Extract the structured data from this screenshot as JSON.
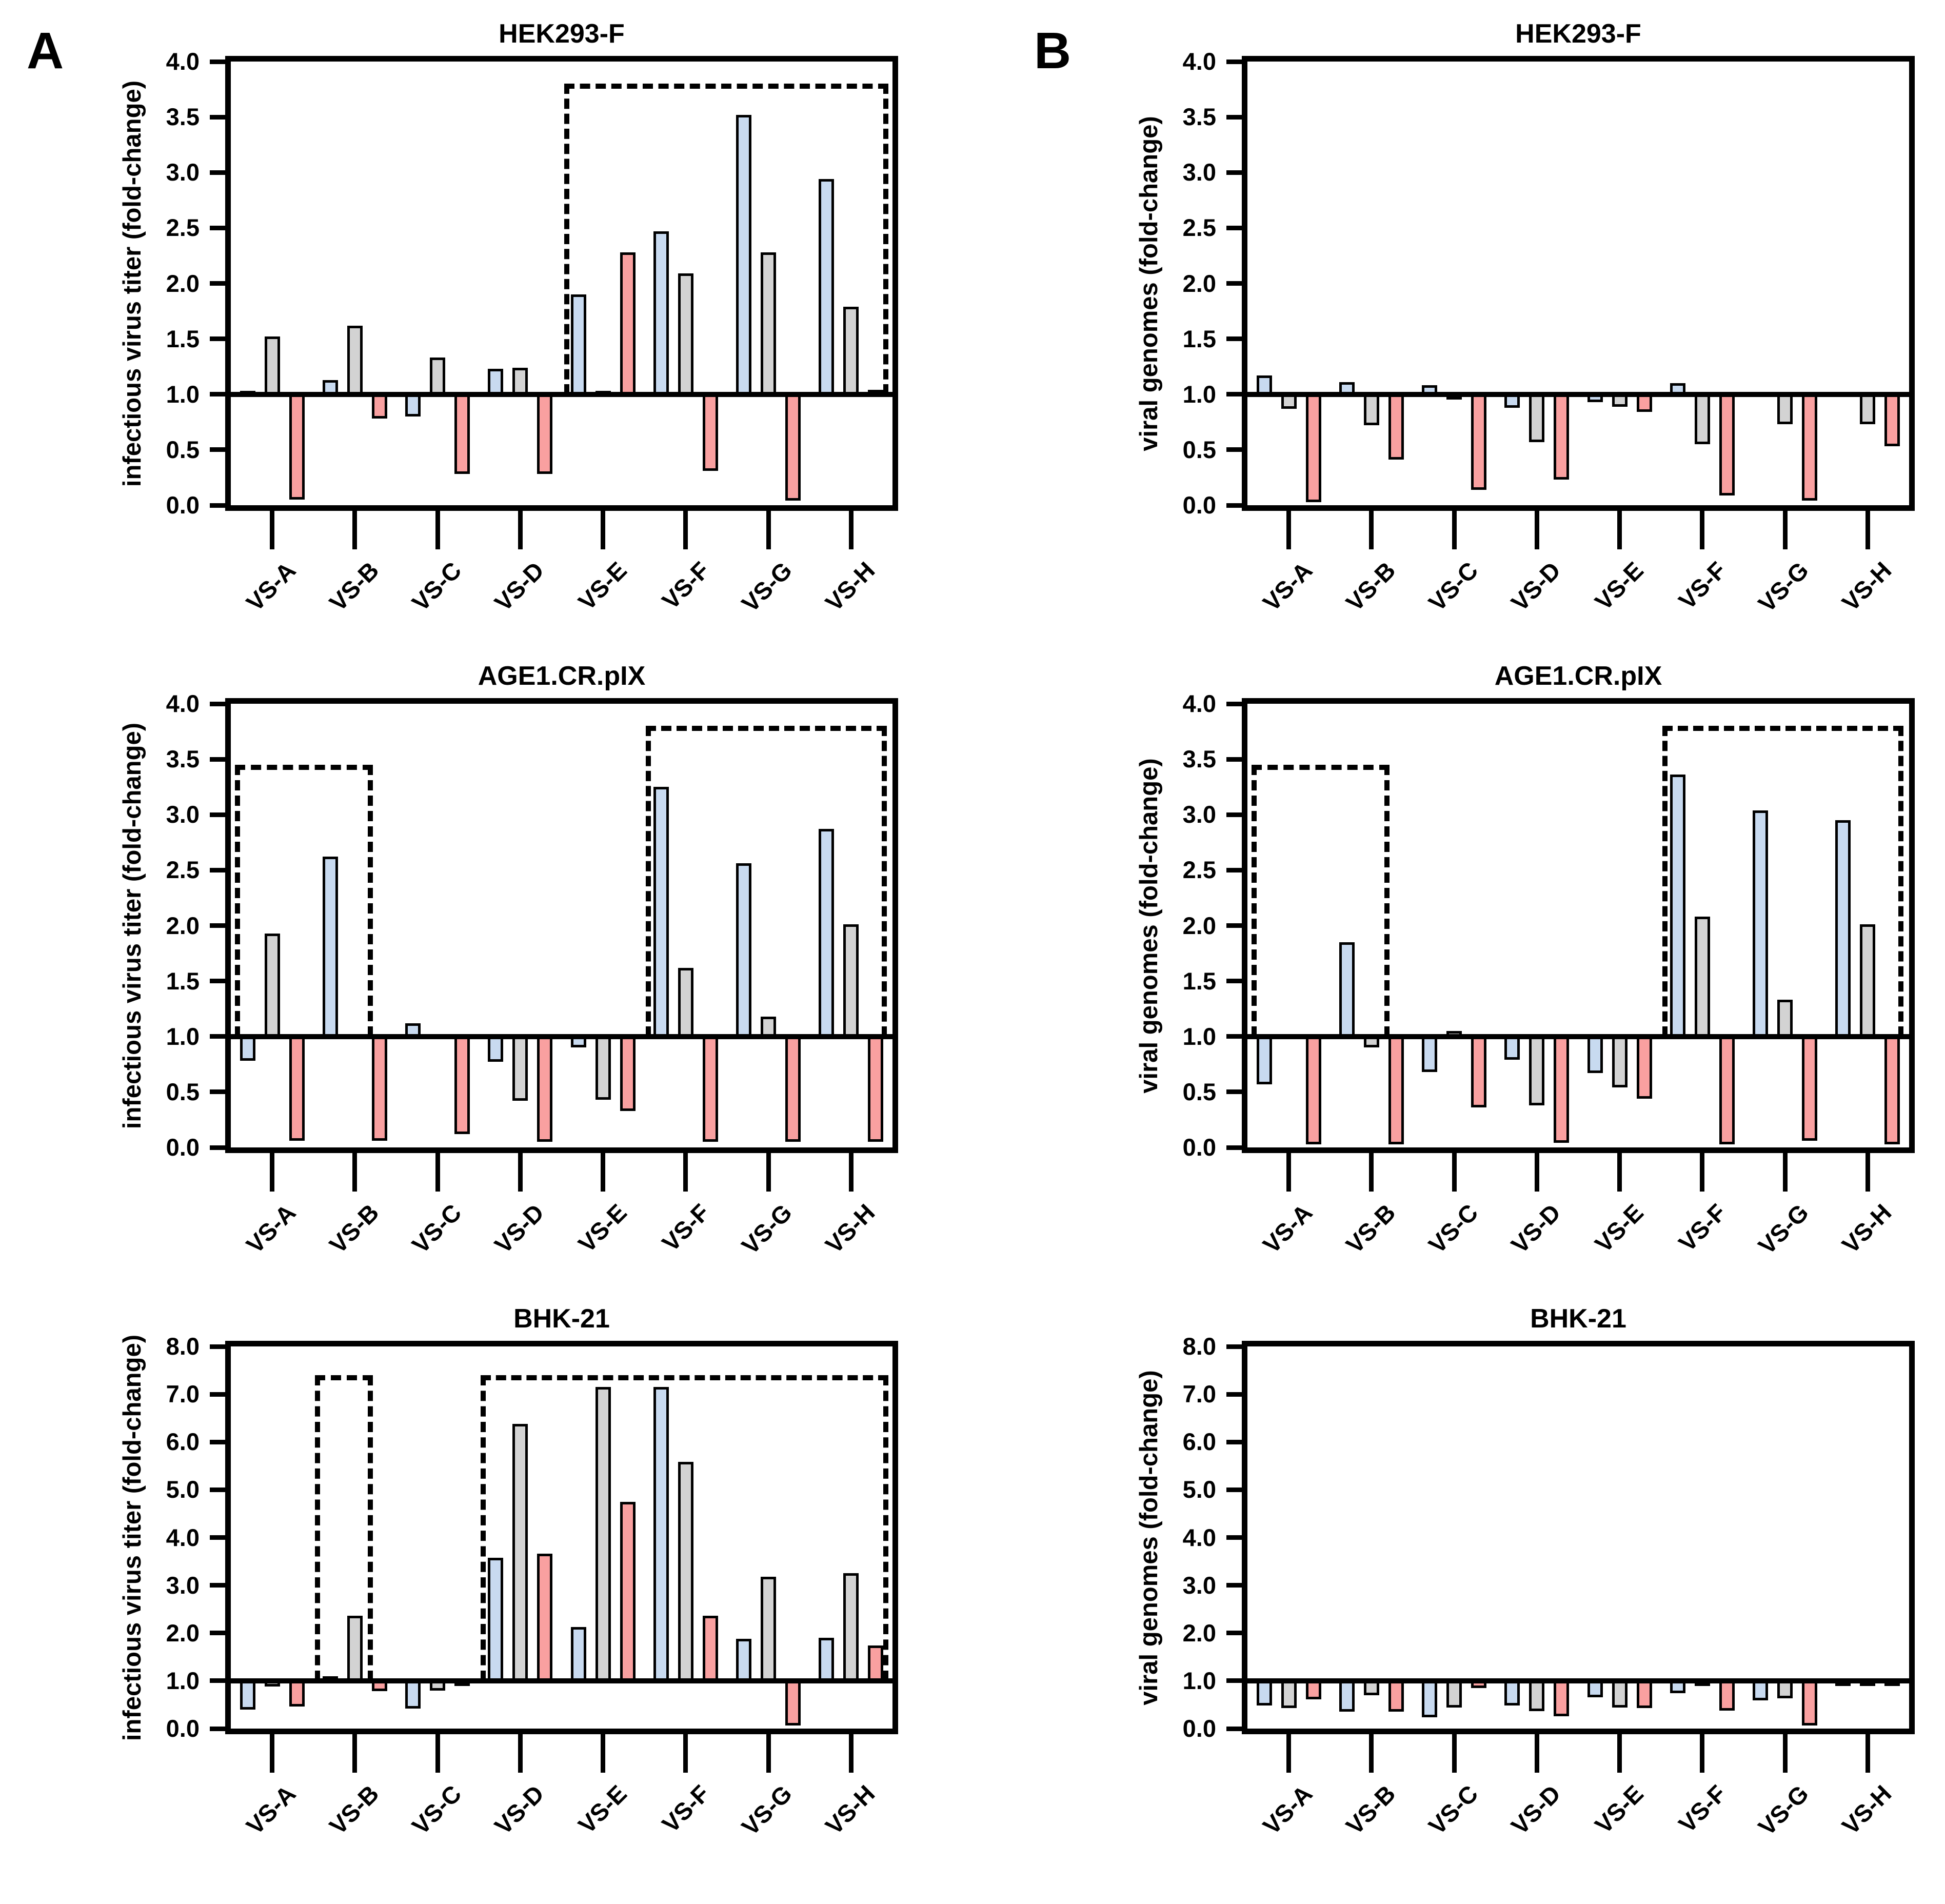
{
  "panels": [
    {
      "label": "A"
    },
    {
      "label": "B"
    }
  ],
  "colors": {
    "blue": "#c8daf0",
    "gray": "#d3d3d3",
    "pink": "#f9a0a0",
    "outline": "#000000"
  },
  "chart_data": [
    {
      "id": "A1",
      "type": "bar",
      "panel": "A",
      "row": 0,
      "col": 0,
      "title": "HEK293-F",
      "ylabel": "infectious virus titer (fold-change)",
      "ylim": [
        0,
        4
      ],
      "ytick_step": 0.5,
      "baseline": 1.0,
      "grid": false,
      "legend": "none",
      "categories": [
        "VS-A",
        "VS-B",
        "VS-C",
        "VS-D",
        "VS-E",
        "VS-F",
        "VS-G",
        "VS-H"
      ],
      "series": [
        {
          "name": "blue",
          "values": [
            1.03,
            1.13,
            0.8,
            1.23,
            1.9,
            2.47,
            3.52,
            2.94
          ]
        },
        {
          "name": "gray",
          "values": [
            1.52,
            1.62,
            1.33,
            1.24,
            1.03,
            2.09,
            2.28,
            1.79
          ]
        },
        {
          "name": "pink",
          "values": [
            0.05,
            0.78,
            0.28,
            0.28,
            2.28,
            0.31,
            0.04,
            1.04
          ]
        }
      ],
      "dashed_boxes": [
        {
          "x1": 4.03,
          "x2": 7.95,
          "top": 3.8
        }
      ]
    },
    {
      "id": "B1",
      "type": "bar",
      "panel": "B",
      "row": 0,
      "col": 1,
      "title": "HEK293-F",
      "ylabel": "viral genomes (fold-change)",
      "ylim": [
        0,
        4
      ],
      "ytick_step": 0.5,
      "baseline": 1.0,
      "grid": false,
      "legend": "none",
      "categories": [
        "VS-A",
        "VS-B",
        "VS-C",
        "VS-D",
        "VS-E",
        "VS-F",
        "VS-G",
        "VS-H"
      ],
      "series": [
        {
          "name": "blue",
          "values": [
            1.17,
            1.11,
            1.08,
            0.88,
            0.93,
            1.1,
            1.0,
            1.0
          ]
        },
        {
          "name": "gray",
          "values": [
            0.87,
            0.72,
            0.96,
            0.57,
            0.89,
            0.55,
            0.73,
            0.73
          ]
        },
        {
          "name": "pink",
          "values": [
            0.03,
            0.41,
            0.14,
            0.23,
            0.84,
            0.09,
            0.04,
            0.53
          ]
        }
      ],
      "dashed_boxes": []
    },
    {
      "id": "A2",
      "type": "bar",
      "panel": "A",
      "row": 1,
      "col": 0,
      "title": "AGE1.CR.pIX",
      "ylabel": "infectious virus titer (fold-change)",
      "ylim": [
        0,
        4
      ],
      "ytick_step": 0.5,
      "baseline": 1.0,
      "grid": false,
      "legend": "none",
      "categories": [
        "VS-A",
        "VS-B",
        "VS-C",
        "VS-D",
        "VS-E",
        "VS-F",
        "VS-G",
        "VS-H"
      ],
      "series": [
        {
          "name": "blue",
          "values": [
            0.78,
            2.62,
            1.12,
            0.77,
            0.9,
            3.25,
            2.56,
            2.87
          ]
        },
        {
          "name": "gray",
          "values": [
            1.93,
            1.0,
            1.0,
            0.42,
            0.43,
            1.62,
            1.18,
            2.01
          ]
        },
        {
          "name": "pink",
          "values": [
            0.06,
            0.06,
            0.12,
            0.05,
            0.33,
            0.05,
            0.05,
            0.05
          ]
        }
      ],
      "dashed_boxes": [
        {
          "x1": 0.05,
          "x2": 1.72,
          "top": 3.45
        },
        {
          "x1": 5.02,
          "x2": 7.93,
          "top": 3.8
        }
      ]
    },
    {
      "id": "B2",
      "type": "bar",
      "panel": "B",
      "row": 1,
      "col": 1,
      "title": "AGE1.CR.pIX",
      "ylabel": "viral genomes (fold-change)",
      "ylim": [
        0,
        4
      ],
      "ytick_step": 0.5,
      "baseline": 1.0,
      "grid": false,
      "legend": "none",
      "categories": [
        "VS-A",
        "VS-B",
        "VS-C",
        "VS-D",
        "VS-E",
        "VS-F",
        "VS-G",
        "VS-H"
      ],
      "series": [
        {
          "name": "blue",
          "values": [
            0.57,
            1.85,
            0.68,
            0.79,
            0.67,
            3.36,
            3.04,
            2.95
          ]
        },
        {
          "name": "gray",
          "values": [
            1.0,
            0.9,
            1.05,
            0.38,
            0.54,
            2.08,
            1.33,
            2.01
          ]
        },
        {
          "name": "pink",
          "values": [
            0.03,
            0.03,
            0.36,
            0.04,
            0.44,
            0.03,
            0.06,
            0.03
          ]
        }
      ],
      "dashed_boxes": [
        {
          "x1": 0.05,
          "x2": 1.72,
          "top": 3.45
        },
        {
          "x1": 5.02,
          "x2": 7.93,
          "top": 3.8
        }
      ]
    },
    {
      "id": "A3",
      "type": "bar",
      "panel": "A",
      "row": 2,
      "col": 0,
      "title": "BHK-21",
      "ylabel": "infectious virus titer (fold-change)",
      "ylim": [
        0,
        8
      ],
      "ytick_step": 1.0,
      "baseline": 1.0,
      "grid": false,
      "legend": "none",
      "categories": [
        "VS-A",
        "VS-B",
        "VS-C",
        "VS-D",
        "VS-E",
        "VS-F",
        "VS-G",
        "VS-H"
      ],
      "series": [
        {
          "name": "blue",
          "values": [
            0.4,
            1.1,
            0.42,
            3.58,
            2.13,
            7.15,
            1.88,
            1.9
          ]
        },
        {
          "name": "gray",
          "values": [
            0.88,
            2.36,
            0.8,
            6.38,
            7.15,
            5.58,
            3.18,
            3.25
          ]
        },
        {
          "name": "pink",
          "values": [
            0.46,
            0.78,
            0.98,
            3.66,
            4.75,
            2.36,
            0.06,
            1.74
          ]
        }
      ],
      "dashed_boxes": [
        {
          "x1": 1.02,
          "x2": 1.72,
          "top": 7.4
        },
        {
          "x1": 3.02,
          "x2": 7.95,
          "top": 7.4
        }
      ]
    },
    {
      "id": "B3",
      "type": "bar",
      "panel": "B",
      "row": 2,
      "col": 1,
      "title": "BHK-21",
      "ylabel": "viral genomes (fold-change)",
      "ylim": [
        0,
        8
      ],
      "ytick_step": 1.0,
      "baseline": 1.0,
      "grid": false,
      "legend": "none",
      "categories": [
        "VS-A",
        "VS-B",
        "VS-C",
        "VS-D",
        "VS-E",
        "VS-F",
        "VS-G",
        "VS-H"
      ],
      "series": [
        {
          "name": "blue",
          "values": [
            0.48,
            0.35,
            0.24,
            0.48,
            0.65,
            0.74,
            0.59,
            0.9
          ]
        },
        {
          "name": "gray",
          "values": [
            0.43,
            0.7,
            0.44,
            0.37,
            0.44,
            0.98,
            0.63,
            0.92
          ]
        },
        {
          "name": "pink",
          "values": [
            0.61,
            0.35,
            0.85,
            0.26,
            0.43,
            0.38,
            0.06,
            0.92
          ]
        }
      ],
      "dashed_boxes": []
    }
  ]
}
